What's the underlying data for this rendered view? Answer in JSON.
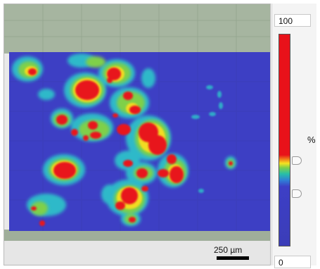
{
  "colorbar": {
    "max_label": "100",
    "min_label": "0",
    "unit": "%",
    "gradient_icon": "red-to-blue-gradient",
    "colors": [
      "#e8121a",
      "#f5e321",
      "#7fd048",
      "#27bfa8",
      "#2f7fd6",
      "#3b3db8"
    ]
  },
  "scale_bar": {
    "label": "250 µm"
  },
  "image": {
    "background_color": "#3d3fc4",
    "tile_color": "#a6b5a0"
  }
}
